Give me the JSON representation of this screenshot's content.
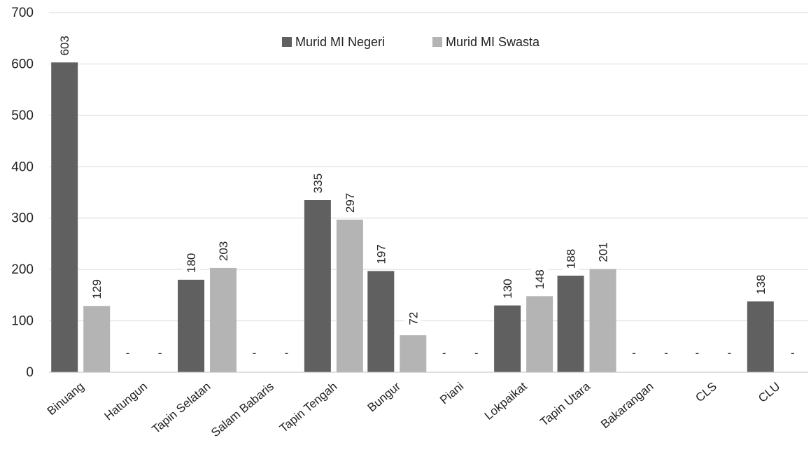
{
  "chart_data": {
    "type": "bar",
    "title": "",
    "xlabel": "",
    "ylabel": "",
    "ylim": [
      0,
      700
    ],
    "y_ticks": [
      0,
      100,
      200,
      300,
      400,
      500,
      600,
      700
    ],
    "grid": "horizontal",
    "legend_position": "top-center",
    "categories": [
      "Binuang",
      "Hatungun",
      "Tapin Selatan",
      "Salam Babaris",
      "Tapin Tengah",
      "Bungur",
      "Piani",
      "Lokpaikat",
      "Tapin Utara",
      "Bakarangan",
      "CLS",
      "CLU"
    ],
    "series": [
      {
        "name": "Murid MI Negeri",
        "color": "#606060",
        "values": [
          603,
          0,
          180,
          0,
          335,
          197,
          0,
          130,
          188,
          0,
          0,
          138
        ],
        "labels": [
          "603",
          "-",
          "180",
          "-",
          "335",
          "197",
          "-",
          "130",
          "188",
          "-",
          "-",
          "138"
        ]
      },
      {
        "name": "Murid MI Swasta",
        "color": "#b4b4b4",
        "values": [
          129,
          0,
          203,
          0,
          297,
          72,
          0,
          148,
          201,
          0,
          0,
          0
        ],
        "labels": [
          "129",
          "-",
          "203",
          "-",
          "297",
          "72",
          "-",
          "148",
          "201",
          "-",
          "-",
          "-"
        ]
      }
    ]
  }
}
